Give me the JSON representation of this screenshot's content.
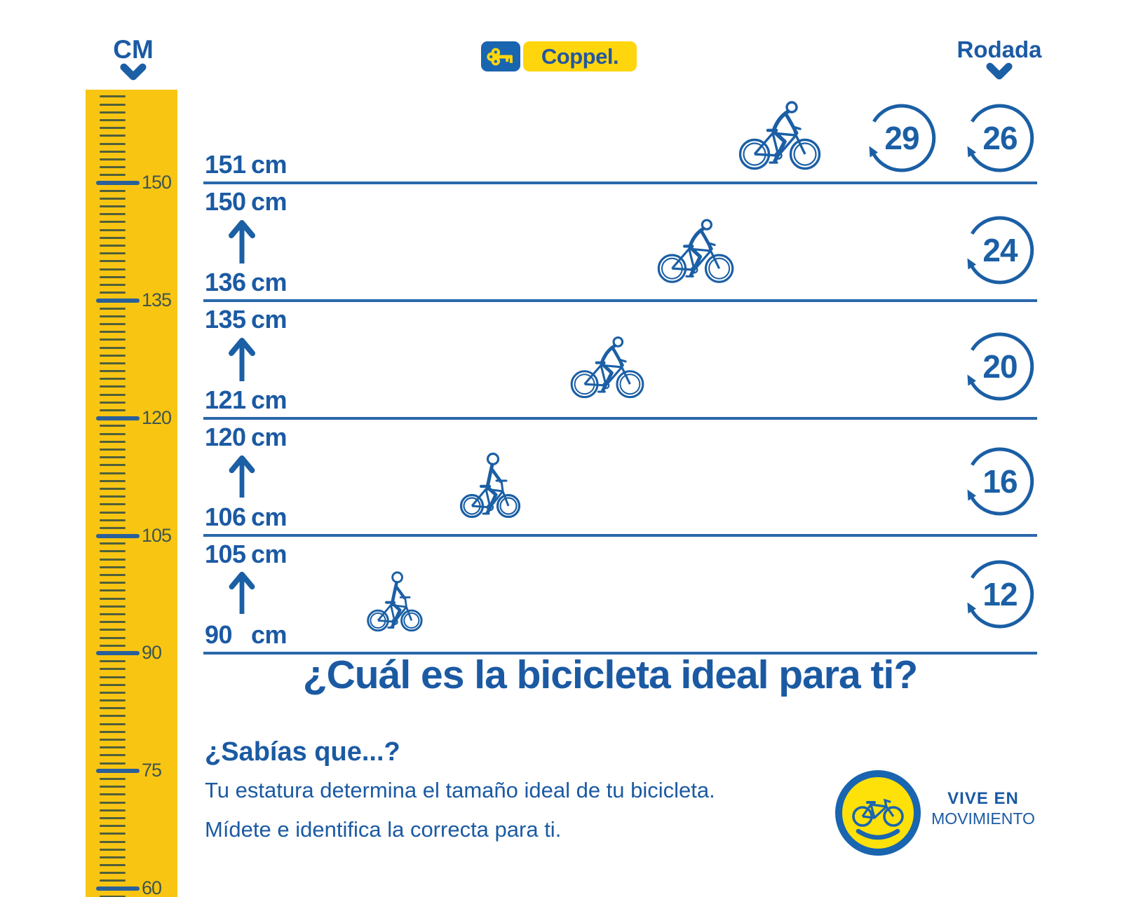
{
  "palette": {
    "blue": "#1b5aa3",
    "line_blue": "#2a68ab",
    "icon_blue": "#1b5fa5",
    "ruler_yellow": "#f9c513",
    "tick_dark": "#50603a",
    "tick_label": "#3e564e",
    "coppel_blue": "#1965af",
    "coppel_text_blue": "#2456a0",
    "coppel_yellow": "#ffd60e",
    "badge_yellow": "#ffe10a"
  },
  "header": {
    "cm_label": "CM",
    "brand": "Coppel.",
    "rodada_label": "Rodada"
  },
  "ruler": {
    "labels": [
      150,
      135,
      120,
      105,
      90,
      75,
      60
    ]
  },
  "bands": [
    {
      "min": {
        "value": "151",
        "unit": "cm"
      },
      "wheels": [
        "29",
        "26"
      ]
    },
    {
      "max": {
        "value": "150",
        "unit": "cm"
      },
      "min": {
        "value": "136",
        "unit": "cm"
      },
      "wheels": [
        "24"
      ]
    },
    {
      "max": {
        "value": "135",
        "unit": "cm"
      },
      "min": {
        "value": "121",
        "unit": "cm"
      },
      "wheels": [
        "20"
      ]
    },
    {
      "max": {
        "value": "120",
        "unit": "cm"
      },
      "min": {
        "value": "106",
        "unit": "cm"
      },
      "wheels": [
        "16"
      ]
    },
    {
      "max": {
        "value": "105",
        "unit": "cm"
      },
      "min": {
        "value": "90",
        "unit": "cm"
      },
      "wheels": [
        "12"
      ]
    }
  ],
  "title": "¿Cuál es la bicicleta ideal para ti?",
  "fact": {
    "heading": "¿Sabías que...?",
    "line1": "Tu estatura determina el tamaño ideal de tu bicicleta.",
    "line2": "Mídete e identifica la correcta para ti."
  },
  "badge": {
    "line1": "VIVE EN",
    "line2": "MOVIMIENTO"
  }
}
